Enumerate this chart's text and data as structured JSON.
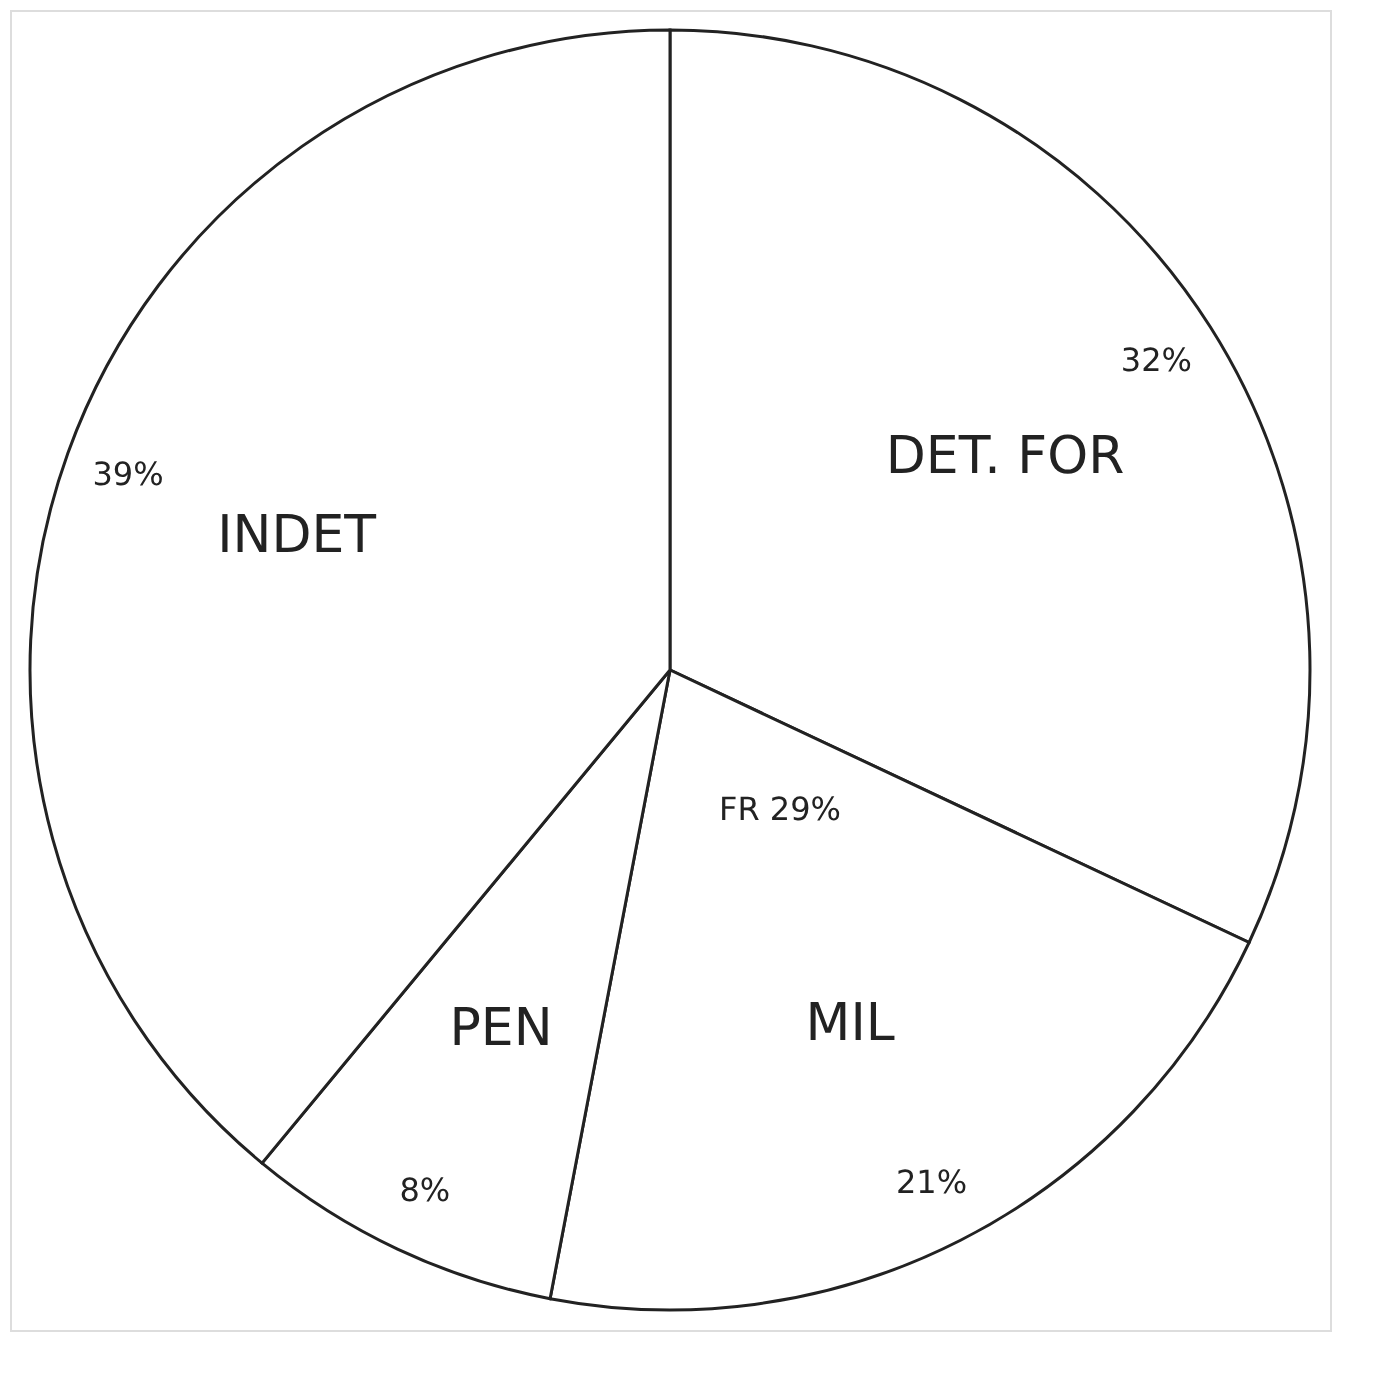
{
  "chart_data": {
    "type": "pie",
    "categories": [
      "DET. FOR",
      "MIL",
      "PEN",
      "INDET"
    ],
    "values": [
      32,
      21,
      8,
      39
    ],
    "colors": [
      "#ffffff",
      "#ffffff",
      "#ffffff",
      "#ffffff"
    ],
    "value_labels": [
      "32%",
      "21%",
      "8%",
      "39%"
    ],
    "annotations": [
      "FR 29%"
    ],
    "legend": false
  }
}
